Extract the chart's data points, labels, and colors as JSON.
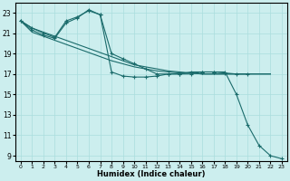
{
  "xlabel": "Humidex (Indice chaleur)",
  "bg_color": "#cceeee",
  "grid_color": "#aadddd",
  "line_color": "#1a6b6b",
  "xlim": [
    -0.5,
    23.5
  ],
  "ylim": [
    8.5,
    24
  ],
  "xticks": [
    0,
    1,
    2,
    3,
    4,
    5,
    6,
    7,
    8,
    9,
    10,
    11,
    12,
    13,
    14,
    15,
    16,
    17,
    18,
    19,
    20,
    21,
    22,
    23
  ],
  "yticks": [
    9,
    11,
    13,
    15,
    17,
    19,
    21,
    23
  ],
  "series1_x": [
    0,
    1,
    2,
    3,
    4,
    5,
    6,
    7,
    8,
    9,
    10,
    11,
    12,
    13,
    14,
    15,
    16,
    17,
    18,
    19,
    20,
    21,
    22
  ],
  "series1_y": [
    22.2,
    21.5,
    21.1,
    20.7,
    20.3,
    19.9,
    19.5,
    19.1,
    18.7,
    18.3,
    17.9,
    17.7,
    17.5,
    17.3,
    17.2,
    17.1,
    17.0,
    17.0,
    17.0,
    17.0,
    17.0,
    17.0,
    17.0
  ],
  "series1_markers": false,
  "series2_x": [
    0,
    1,
    2,
    3,
    4,
    5,
    6,
    7,
    8,
    9,
    10,
    11,
    12,
    13,
    14,
    15,
    16,
    17,
    18,
    19,
    20,
    21,
    22,
    23
  ],
  "series2_y": [
    22.2,
    21.5,
    21.0,
    20.6,
    22.2,
    22.6,
    23.2,
    22.8,
    19.0,
    18.5,
    18.0,
    17.5,
    17.0,
    17.0,
    17.0,
    17.2,
    17.2,
    17.2,
    17.1,
    17.0,
    17.0,
    null,
    null,
    null
  ],
  "series2_markers": true,
  "series3_x": [
    0,
    1,
    2,
    3,
    4,
    5,
    6,
    7,
    8,
    9,
    10,
    11,
    12,
    13,
    14,
    15,
    16,
    17,
    18,
    19,
    20,
    21,
    22,
    23
  ],
  "series3_y": [
    22.2,
    21.3,
    20.8,
    20.5,
    22.0,
    22.5,
    23.3,
    22.8,
    17.2,
    16.8,
    16.7,
    16.7,
    16.8,
    17.0,
    17.0,
    17.0,
    17.2,
    17.2,
    17.2,
    15.0,
    12.0,
    10.0,
    9.0,
    8.7
  ],
  "series3_markers": true,
  "series4_x": [
    0,
    1,
    2,
    3,
    4,
    5,
    6,
    7,
    8,
    9,
    10,
    11,
    12,
    13,
    14,
    15,
    16,
    17,
    18,
    19,
    20,
    21,
    22
  ],
  "series4_y": [
    22.2,
    21.1,
    20.7,
    20.3,
    19.9,
    19.5,
    19.1,
    18.7,
    18.3,
    18.0,
    17.7,
    17.5,
    17.3,
    17.2,
    17.1,
    17.1,
    17.0,
    17.0,
    17.0,
    17.0,
    17.0,
    17.0,
    17.0
  ],
  "series4_markers": false
}
